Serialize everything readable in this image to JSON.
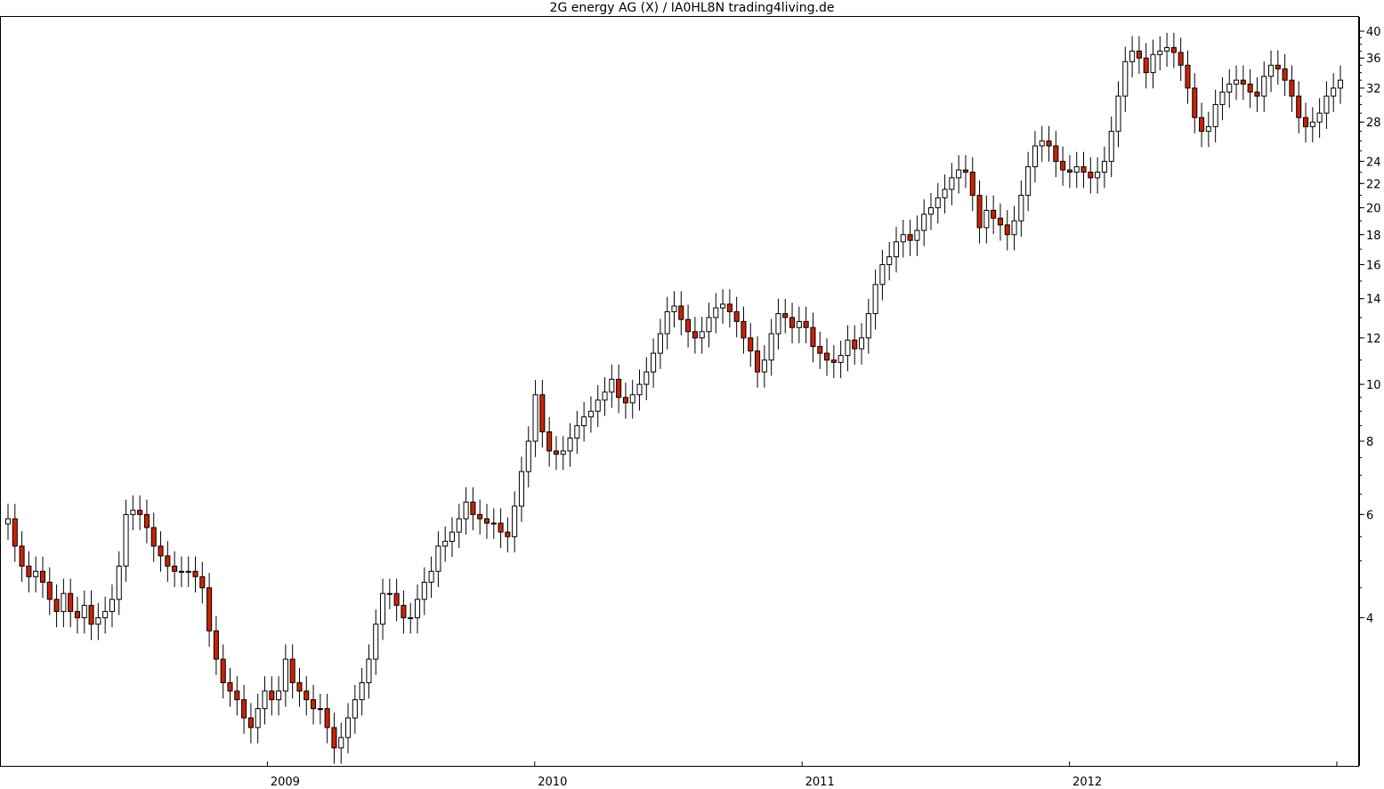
{
  "chart_data": {
    "type": "candlestick",
    "title": "2G energy AG (X) / IA0HL8N trading4living.de",
    "y_scale": "log",
    "ylim": [
      2.3,
      41
    ],
    "y_ticks": [
      40,
      36,
      32,
      28,
      24,
      22,
      20,
      18,
      16,
      14,
      12,
      10,
      8,
      6,
      4
    ],
    "x_ticks": [
      {
        "label": "2009",
        "date": "2009-01"
      },
      {
        "label": "2010",
        "date": "2010-01"
      },
      {
        "label": "2011",
        "date": "2011-01"
      },
      {
        "label": "2012",
        "date": "2012-01"
      }
    ],
    "x_range": [
      "2008-01",
      "2013-01"
    ],
    "colors": {
      "up": "#ffffff",
      "down": "#cc2200",
      "outline": "#000000"
    },
    "weekly_close": [
      5.9,
      5.3,
      4.9,
      4.7,
      4.8,
      4.6,
      4.3,
      4.1,
      4.4,
      4.1,
      4.0,
      4.2,
      3.9,
      4.0,
      4.1,
      4.3,
      4.9,
      6.0,
      6.1,
      6.0,
      5.7,
      5.3,
      5.1,
      4.9,
      4.8,
      4.8,
      4.8,
      4.7,
      4.5,
      3.8,
      3.4,
      3.1,
      3.0,
      2.9,
      2.7,
      2.6,
      2.8,
      3.0,
      2.9,
      3.0,
      3.4,
      3.1,
      3.0,
      2.9,
      2.8,
      2.8,
      2.6,
      2.4,
      2.5,
      2.7,
      2.9,
      3.1,
      3.4,
      3.9,
      4.4,
      4.4,
      4.2,
      4.0,
      4.0,
      4.3,
      4.6,
      4.8,
      5.3,
      5.4,
      5.6,
      5.9,
      6.3,
      6.0,
      5.9,
      5.8,
      5.8,
      5.6,
      5.5,
      6.2,
      7.1,
      8.0,
      9.6,
      8.3,
      7.7,
      7.6,
      7.7,
      8.1,
      8.5,
      8.8,
      9.0,
      9.4,
      9.7,
      10.2,
      9.5,
      9.3,
      9.6,
      10.0,
      10.5,
      11.3,
      12.2,
      13.3,
      13.6,
      12.9,
      12.3,
      12.0,
      12.3,
      13.0,
      13.5,
      13.7,
      13.3,
      12.8,
      12.0,
      11.4,
      10.5,
      11.0,
      12.2,
      13.2,
      13.0,
      12.5,
      12.8,
      12.5,
      11.6,
      11.3,
      11.0,
      10.9,
      11.2,
      11.9,
      11.5,
      12.0,
      13.2,
      14.8,
      16.0,
      16.5,
      17.5,
      18.0,
      17.6,
      18.3,
      19.5,
      20.0,
      20.8,
      21.5,
      22.5,
      23.2,
      23.0,
      21.0,
      18.5,
      19.8,
      19.2,
      18.7,
      18.0,
      19.0,
      21.0,
      23.5,
      25.5,
      26.0,
      25.5,
      24.0,
      23.2,
      23.0,
      23.5,
      23.0,
      22.5,
      23.0,
      24.0,
      27.0,
      31.0,
      35.5,
      37.0,
      36.0,
      34.0,
      36.5,
      37.0,
      37.5,
      36.8,
      35.0,
      32.0,
      28.5,
      27.0,
      27.5,
      30.0,
      31.5,
      32.5,
      33.0,
      32.5,
      31.5,
      31.0,
      33.5,
      35.0,
      34.5,
      33.0,
      31.0,
      28.5,
      27.5,
      28.0,
      29.0,
      31.0,
      32.0,
      33.0
    ]
  }
}
